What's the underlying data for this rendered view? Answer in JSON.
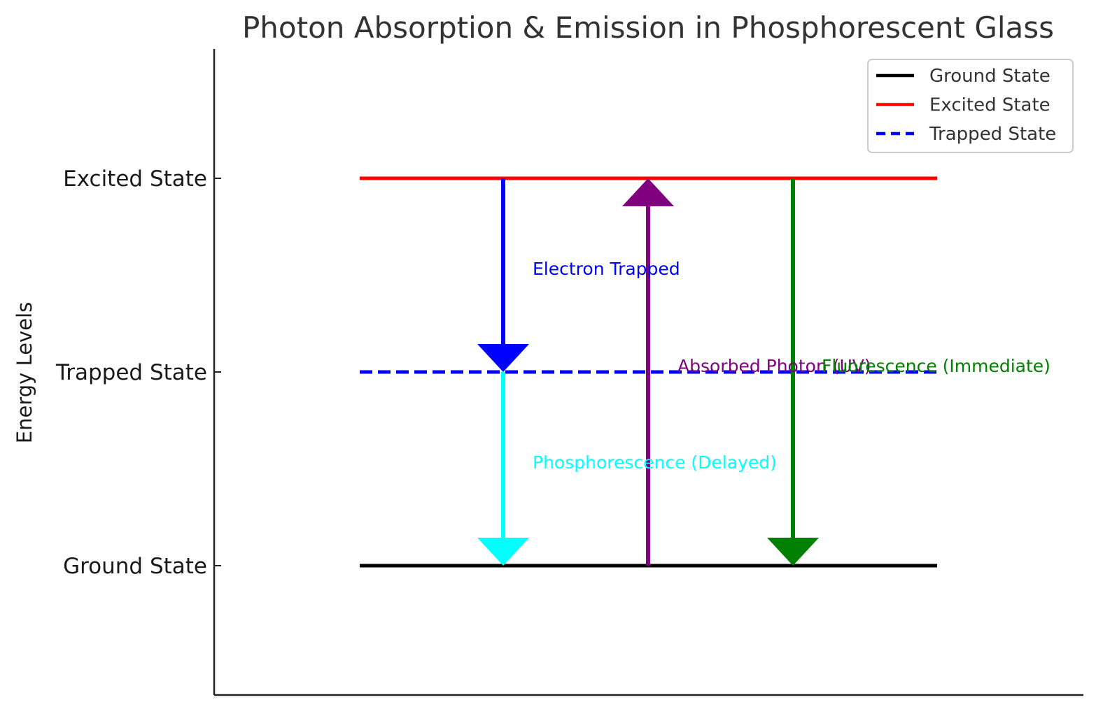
{
  "chart_data": {
    "type": "diagram",
    "title": "Photon Absorption & Emission in Phosphorescent Glass",
    "ylabel": "Energy Levels",
    "ylim": [
      -0.2,
      2.8
    ],
    "levels": [
      {
        "name": "Ground State",
        "energy": 0,
        "color": "#000000",
        "style": "solid"
      },
      {
        "name": "Excited State",
        "energy": 2,
        "color": "#ff0000",
        "style": "solid"
      },
      {
        "name": "Trapped State",
        "energy": 1,
        "color": "#0000ff",
        "style": "dashed"
      }
    ],
    "yticks": [
      {
        "value": 0,
        "label": "Ground State"
      },
      {
        "value": 1,
        "label": "Trapped State"
      },
      {
        "value": 2,
        "label": "Excited State"
      }
    ],
    "transitions": [
      {
        "label": "Electron Trapped",
        "from": 2,
        "to": 1,
        "color": "#0000ff"
      },
      {
        "label": "Phosphorescence (Delayed)",
        "from": 1,
        "to": 0,
        "color": "#00ffff"
      },
      {
        "label": "Absorbed Photon (UV)",
        "from": 0,
        "to": 2,
        "color": "#800080"
      },
      {
        "label": "Fluorescence (Immediate)",
        "from": 2,
        "to": 0,
        "color": "#008000"
      }
    ],
    "legend": {
      "placement": "top-right",
      "entries": [
        "Ground State",
        "Excited State",
        "Trapped State"
      ]
    }
  }
}
